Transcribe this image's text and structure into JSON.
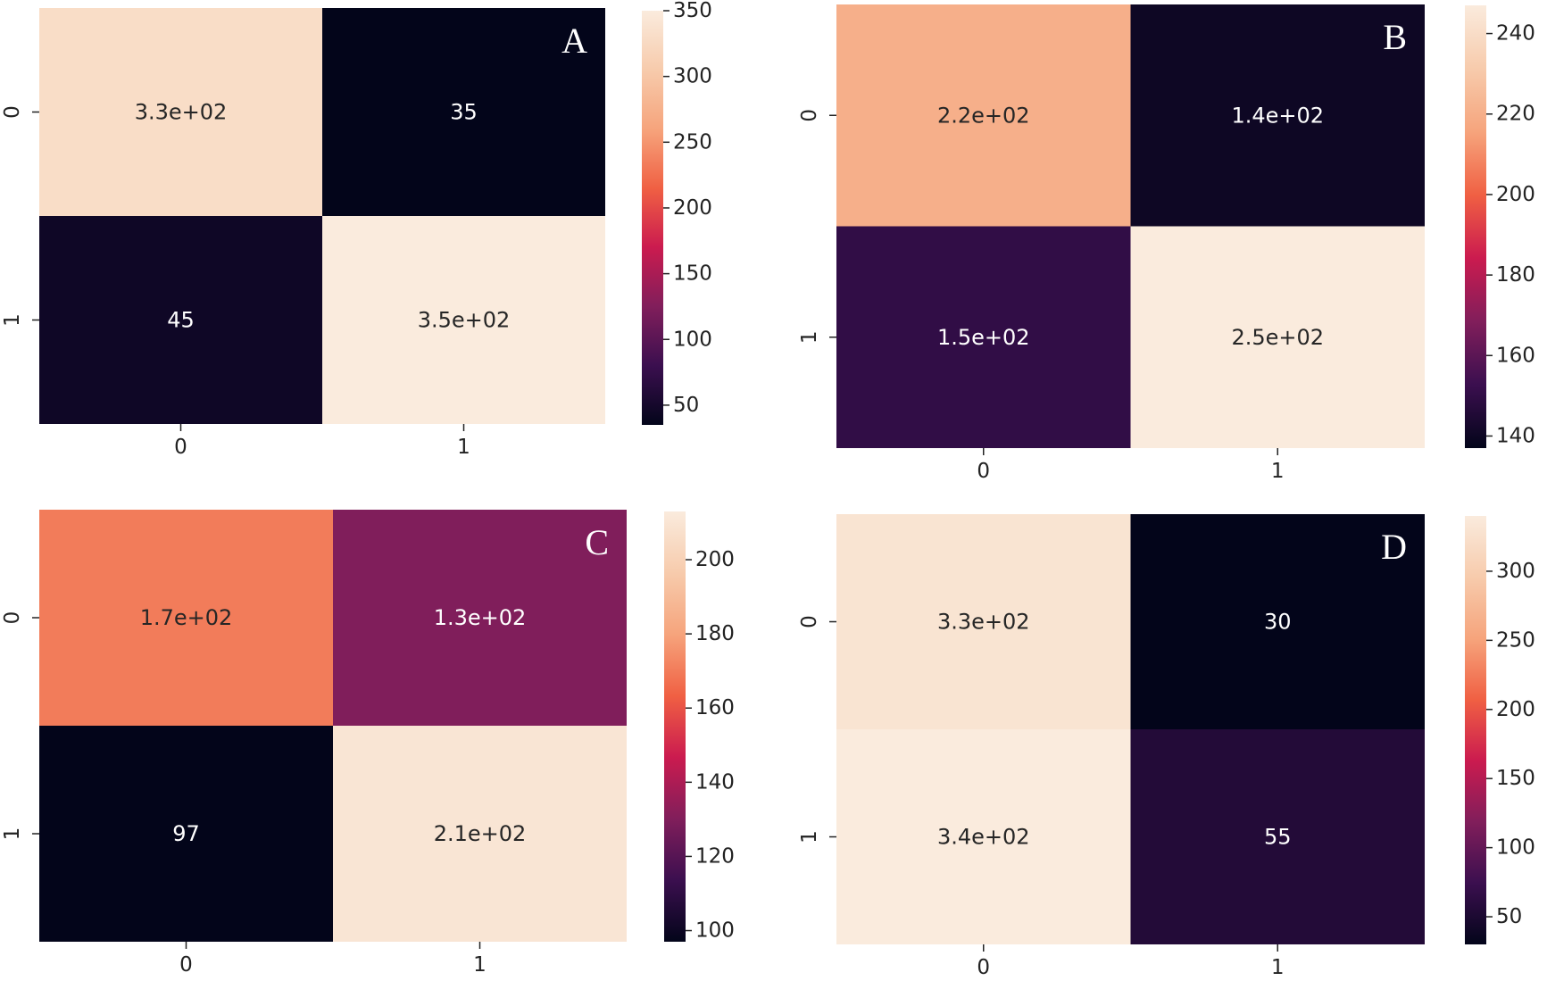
{
  "chart_data": [
    {
      "type": "heatmap",
      "panel": "A",
      "x_ticks": [
        "0",
        "1"
      ],
      "y_ticks": [
        "0",
        "1"
      ],
      "values": [
        [
          330,
          35
        ],
        [
          45,
          350
        ]
      ],
      "labels": [
        [
          "3.3e+02",
          "35"
        ],
        [
          "45",
          "3.5e+02"
        ]
      ],
      "colorbar": {
        "min": 35,
        "max": 350,
        "ticks": [
          "50",
          "100",
          "150",
          "200",
          "250",
          "300",
          "350"
        ]
      }
    },
    {
      "type": "heatmap",
      "panel": "B",
      "x_ticks": [
        "0",
        "1"
      ],
      "y_ticks": [
        "0",
        "1"
      ],
      "values": [
        [
          220,
          140
        ],
        [
          150,
          250
        ]
      ],
      "labels": [
        [
          "2.2e+02",
          "1.4e+02"
        ],
        [
          "1.5e+02",
          "2.5e+02"
        ]
      ],
      "colorbar": {
        "min": 137,
        "max": 247,
        "ticks": [
          "140",
          "160",
          "180",
          "200",
          "220",
          "240"
        ]
      }
    },
    {
      "type": "heatmap",
      "panel": "C",
      "x_ticks": [
        "0",
        "1"
      ],
      "y_ticks": [
        "0",
        "1"
      ],
      "values": [
        [
          170,
          130
        ],
        [
          97,
          210
        ]
      ],
      "labels": [
        [
          "1.7e+02",
          "1.3e+02"
        ],
        [
          "97",
          "2.1e+02"
        ]
      ],
      "colorbar": {
        "min": 97,
        "max": 213,
        "ticks": [
          "100",
          "120",
          "140",
          "160",
          "180",
          "200"
        ]
      }
    },
    {
      "type": "heatmap",
      "panel": "D",
      "x_ticks": [
        "0",
        "1"
      ],
      "y_ticks": [
        "0",
        "1"
      ],
      "values": [
        [
          330,
          30
        ],
        [
          340,
          55
        ]
      ],
      "labels": [
        [
          "3.3e+02",
          "30"
        ],
        [
          "3.4e+02",
          "55"
        ]
      ],
      "colorbar": {
        "min": 30,
        "max": 340,
        "ticks": [
          "50",
          "100",
          "150",
          "200",
          "250",
          "300"
        ]
      }
    }
  ],
  "colors": {
    "colormap": [
      "#03051a",
      "#3b0f4f",
      "#811e5b",
      "#cb1b4f",
      "#f06043",
      "#f6a47c",
      "#f7cbac",
      "#faebdd"
    ],
    "text_light": "#ffffff",
    "text_dark": "#262626"
  }
}
